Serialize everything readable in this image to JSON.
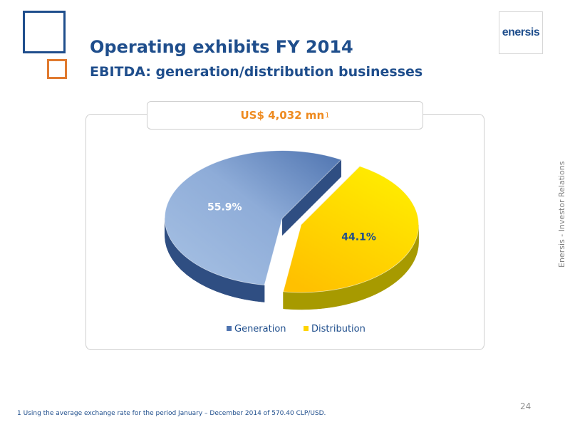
{
  "header": {
    "title": "Operating exhibits FY 2014",
    "subtitle": "EBITDA: generation/distribution businesses"
  },
  "logo": {
    "text": "enersis"
  },
  "side_label": "Enersis - Investor Relations",
  "panel": {
    "total_label": "US$ 4,032 mn",
    "total_footnote_marker": "1"
  },
  "chart_data": {
    "type": "pie",
    "title": "US$ 4,032 mn",
    "slices": [
      {
        "name": "Generation",
        "value": 55.9,
        "label": "55.9%",
        "color": "#4f74b0",
        "color_light": "#a8c2e4",
        "color_side": "#2f4e82"
      },
      {
        "name": "Distribution",
        "value": 44.1,
        "label": "44.1%",
        "color": "#ffd400",
        "color_light": "#ffe600",
        "color_side": "#a79a00"
      }
    ],
    "legend_position": "bottom",
    "exploded": "Distribution",
    "three_d": true
  },
  "footer": {
    "page_number": "24",
    "footnote": "1 Using the average exchange rate for the period January – December 2014 of  570.40 CLP/USD."
  }
}
